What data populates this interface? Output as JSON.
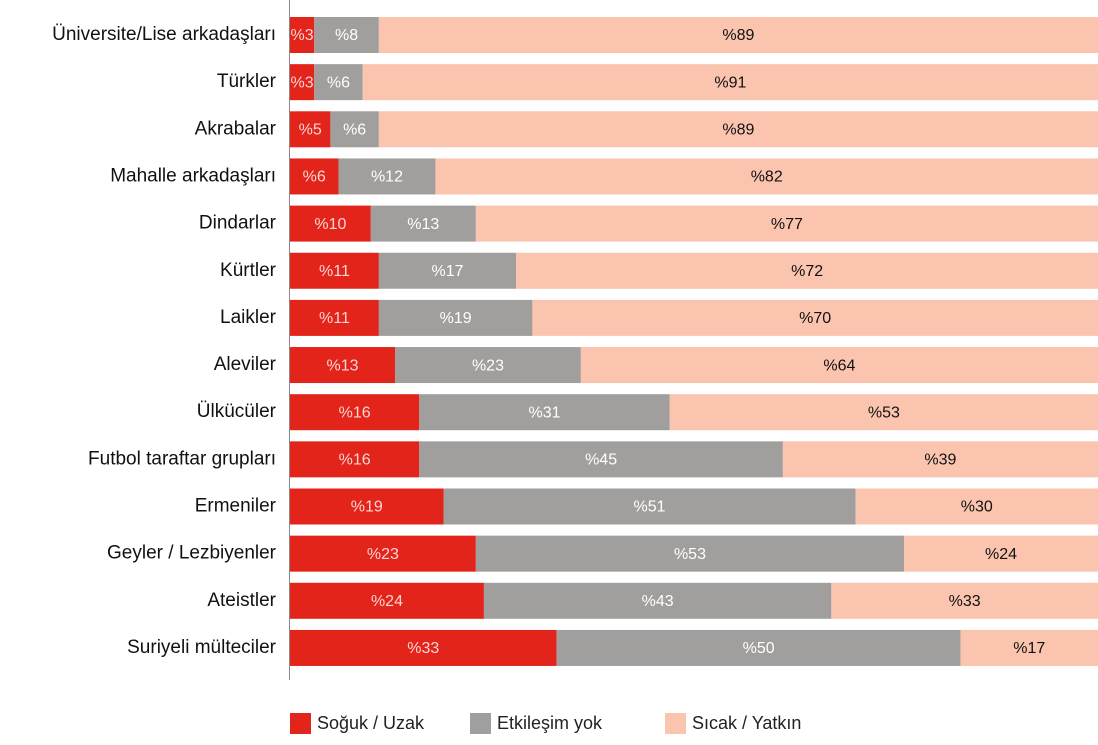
{
  "chart_data": {
    "type": "bar",
    "orientation": "horizontal",
    "stacked": true,
    "categories": [
      "Üniversite/Lise arkadaşları",
      "Türkler",
      "Akrabalar",
      "Mahalle arkadaşları",
      "Dindarlar",
      "Kürtler",
      "Laikler",
      "Aleviler",
      "Ülkücüler",
      "Futbol taraftar grupları",
      "Ermeniler",
      "Geyler / Lezbiyenler",
      "Ateistler",
      "Suriyeli mülteciler"
    ],
    "series": [
      {
        "name": "Soğuk / Uzak",
        "color": "#e3241b",
        "values": [
          3,
          3,
          5,
          6,
          10,
          11,
          11,
          13,
          16,
          16,
          19,
          23,
          24,
          33
        ],
        "value_labels": [
          "%3",
          "%3",
          "%5",
          "%6",
          "%10",
          "%11",
          "%11",
          "%13",
          "%16",
          "%16",
          "%19",
          "%23",
          "%24",
          "%33"
        ]
      },
      {
        "name": "Etkileşim yok",
        "color": "#a09f9d",
        "values": [
          8,
          6,
          6,
          12,
          13,
          17,
          19,
          23,
          31,
          45,
          51,
          53,
          43,
          50
        ],
        "value_labels": [
          "%8",
          "%6",
          "%6",
          "%12",
          "%13",
          "%17",
          "%19",
          "%23",
          "%31",
          "%45",
          "%51",
          "%53",
          "%43",
          "%50"
        ]
      },
      {
        "name": "Sıcak / Yatkın",
        "color": "#fac4ae",
        "values": [
          89,
          91,
          89,
          82,
          77,
          72,
          70,
          64,
          53,
          39,
          30,
          24,
          33,
          17
        ],
        "value_labels": [
          "%89",
          "%91",
          "%89",
          "%82",
          "%77",
          "%72",
          "%70",
          "%64",
          "%53",
          "%39",
          "%30",
          "%24",
          "%33",
          "%17"
        ]
      }
    ],
    "legend": "bottom"
  }
}
